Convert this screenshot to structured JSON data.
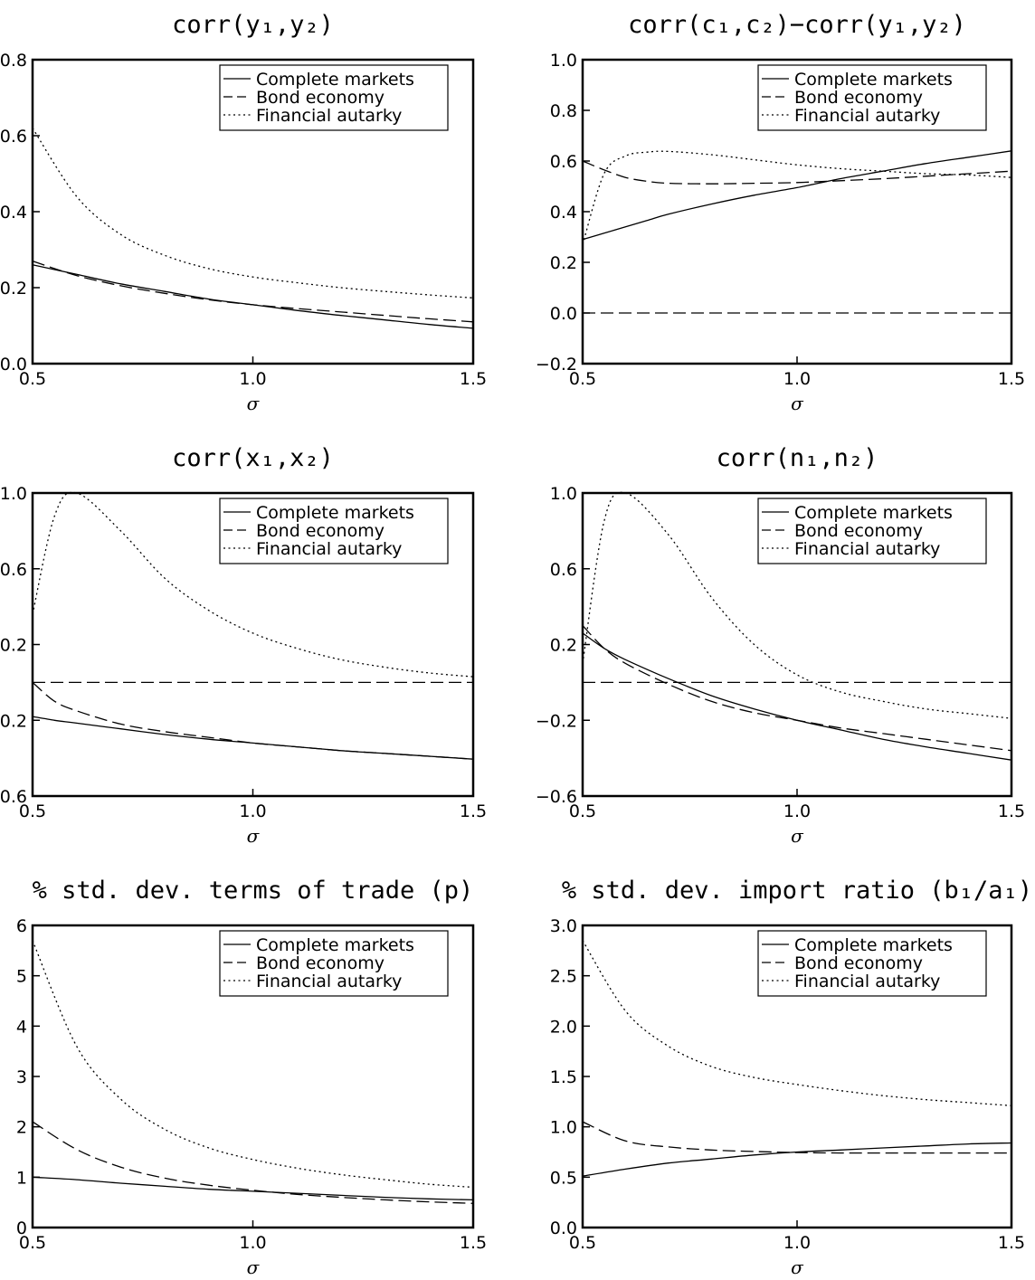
{
  "styles": {
    "Complete markets": "solid",
    "Bond economy": "dashed",
    "Financial autarky": "dotted"
  },
  "chart_data": [
    {
      "type": "line",
      "title": "corr(y₁,y₂)",
      "xlabel": "σ",
      "xlim": [
        0.5,
        1.5
      ],
      "ylim": [
        0.0,
        0.8
      ],
      "xticks": [
        "0.5",
        "1.0",
        "1.5"
      ],
      "yticks": [
        "0.0",
        "0.2",
        "0.4",
        "0.6",
        "0.8"
      ],
      "legend": [
        "Complete markets",
        "Bond economy",
        "Financial autarky"
      ],
      "legend_position": "top-right",
      "x": [
        0.5,
        0.6,
        0.7,
        0.8,
        0.9,
        1.0,
        1.1,
        1.2,
        1.3,
        1.4,
        1.5
      ],
      "series": [
        {
          "name": "Complete markets",
          "values": [
            0.26,
            0.235,
            0.21,
            0.19,
            0.17,
            0.155,
            0.14,
            0.127,
            0.115,
            0.103,
            0.093
          ]
        },
        {
          "name": "Bond economy",
          "values": [
            0.27,
            0.232,
            0.205,
            0.185,
            0.168,
            0.155,
            0.145,
            0.136,
            0.127,
            0.118,
            0.11
          ]
        },
        {
          "name": "Financial autarky",
          "values": [
            0.62,
            0.44,
            0.34,
            0.285,
            0.25,
            0.228,
            0.213,
            0.2,
            0.19,
            0.181,
            0.173
          ]
        }
      ]
    },
    {
      "type": "line",
      "title": "corr(c₁,c₂)−corr(y₁,y₂)",
      "xlabel": "σ",
      "xlim": [
        0.5,
        1.5
      ],
      "ylim": [
        -0.2,
        1.0
      ],
      "xticks": [
        "0.5",
        "1.0",
        "1.5"
      ],
      "yticks": [
        "−0.2",
        "0.0",
        "0.2",
        "0.4",
        "0.6",
        "0.8",
        "1.0"
      ],
      "legend": [
        "Complete markets",
        "Bond economy",
        "Financial autarky"
      ],
      "legend_position": "top-right",
      "reference_line": 0.0,
      "x": [
        0.5,
        0.55,
        0.6,
        0.65,
        0.7,
        0.8,
        0.9,
        1.0,
        1.1,
        1.2,
        1.3,
        1.4,
        1.5
      ],
      "series": [
        {
          "name": "Complete markets",
          "values": [
            0.29,
            0.315,
            0.34,
            0.365,
            0.39,
            0.43,
            0.465,
            0.495,
            0.53,
            0.56,
            0.59,
            0.615,
            0.64
          ]
        },
        {
          "name": "Bond economy",
          "values": [
            0.6,
            0.565,
            0.535,
            0.52,
            0.512,
            0.51,
            0.512,
            0.515,
            0.522,
            0.53,
            0.54,
            0.55,
            0.56
          ]
        },
        {
          "name": "Financial autarky",
          "values": [
            0.27,
            0.55,
            0.62,
            0.635,
            0.638,
            0.625,
            0.605,
            0.585,
            0.57,
            0.56,
            0.55,
            0.545,
            0.535
          ]
        }
      ]
    },
    {
      "type": "line",
      "title": "corr(x₁,x₂)",
      "xlabel": "σ",
      "xlim": [
        0.5,
        1.5
      ],
      "ylim": [
        -0.6,
        1.0
      ],
      "xticks": [
        "0.5",
        "1.0",
        "1.5"
      ],
      "yticks": [
        "−0.6",
        "−0.2",
        "0.2",
        "0.6",
        "1.0"
      ],
      "legend": [
        "Complete markets",
        "Bond economy",
        "Financial autarky"
      ],
      "legend_position": "top-right",
      "reference_line": 0.0,
      "x": [
        0.5,
        0.55,
        0.6,
        0.7,
        0.8,
        0.9,
        1.0,
        1.1,
        1.2,
        1.3,
        1.4,
        1.5
      ],
      "series": [
        {
          "name": "Complete markets",
          "values": [
            -0.18,
            -0.2,
            -0.215,
            -0.245,
            -0.275,
            -0.3,
            -0.32,
            -0.34,
            -0.36,
            -0.375,
            -0.39,
            -0.405
          ]
        },
        {
          "name": "Bond economy",
          "values": [
            0.0,
            -0.1,
            -0.15,
            -0.22,
            -0.26,
            -0.29,
            -0.32,
            -0.34,
            -0.36,
            -0.375,
            -0.39,
            -0.405
          ]
        },
        {
          "name": "Financial autarky",
          "values": [
            0.36,
            0.88,
            1.0,
            0.8,
            0.55,
            0.38,
            0.26,
            0.18,
            0.12,
            0.08,
            0.05,
            0.03
          ]
        }
      ]
    },
    {
      "type": "line",
      "title": "corr(n₁,n₂)",
      "xlabel": "σ",
      "xlim": [
        0.5,
        1.5
      ],
      "ylim": [
        -0.6,
        1.0
      ],
      "xticks": [
        "0.5",
        "1.0",
        "1.5"
      ],
      "yticks": [
        "−0.6",
        "−0.2",
        "0.2",
        "0.6",
        "1.0"
      ],
      "legend": [
        "Complete markets",
        "Bond economy",
        "Financial autarky"
      ],
      "legend_position": "top-right",
      "reference_line": 0.0,
      "x": [
        0.5,
        0.55,
        0.6,
        0.7,
        0.8,
        0.9,
        1.0,
        1.1,
        1.2,
        1.3,
        1.4,
        1.5
      ],
      "series": [
        {
          "name": "Complete markets",
          "values": [
            0.26,
            0.18,
            0.12,
            0.02,
            -0.07,
            -0.14,
            -0.2,
            -0.25,
            -0.3,
            -0.34,
            -0.375,
            -0.41
          ]
        },
        {
          "name": "Bond economy",
          "values": [
            0.3,
            0.18,
            0.1,
            -0.01,
            -0.1,
            -0.16,
            -0.2,
            -0.24,
            -0.27,
            -0.3,
            -0.33,
            -0.36
          ]
        },
        {
          "name": "Financial autarky",
          "values": [
            0.1,
            0.85,
            1.0,
            0.78,
            0.45,
            0.2,
            0.04,
            -0.05,
            -0.1,
            -0.14,
            -0.165,
            -0.19
          ]
        }
      ]
    },
    {
      "type": "line",
      "title": "% std. dev. terms of trade (p)",
      "xlabel": "σ",
      "xlim": [
        0.5,
        1.5
      ],
      "ylim": [
        0,
        6
      ],
      "xticks": [
        "0.5",
        "1.0",
        "1.5"
      ],
      "yticks": [
        "0",
        "1",
        "2",
        "3",
        "4",
        "5",
        "6"
      ],
      "legend": [
        "Complete markets",
        "Bond economy",
        "Financial autarky"
      ],
      "legend_position": "top-right",
      "x": [
        0.5,
        0.6,
        0.7,
        0.8,
        0.9,
        1.0,
        1.1,
        1.2,
        1.3,
        1.4,
        1.5
      ],
      "series": [
        {
          "name": "Complete markets",
          "values": [
            1.0,
            0.95,
            0.88,
            0.82,
            0.76,
            0.72,
            0.68,
            0.64,
            0.6,
            0.57,
            0.55
          ]
        },
        {
          "name": "Bond economy",
          "values": [
            2.1,
            1.55,
            1.2,
            0.98,
            0.84,
            0.74,
            0.66,
            0.6,
            0.55,
            0.51,
            0.48
          ]
        },
        {
          "name": "Financial autarky",
          "values": [
            5.7,
            3.6,
            2.55,
            1.95,
            1.58,
            1.35,
            1.18,
            1.05,
            0.95,
            0.86,
            0.8
          ]
        }
      ]
    },
    {
      "type": "line",
      "title": "% std. dev. import ratio (b₁/a₁)",
      "xlabel": "σ",
      "xlim": [
        0.5,
        1.5
      ],
      "ylim": [
        0.0,
        3.0
      ],
      "xticks": [
        "0.5",
        "1.0",
        "1.5"
      ],
      "yticks": [
        "0.0",
        "0.5",
        "1.0",
        "1.5",
        "2.0",
        "2.5",
        "3.0"
      ],
      "legend": [
        "Complete markets",
        "Bond economy",
        "Financial autarky"
      ],
      "legend_position": "top-right",
      "x": [
        0.5,
        0.6,
        0.7,
        0.8,
        0.9,
        1.0,
        1.1,
        1.2,
        1.3,
        1.4,
        1.5
      ],
      "series": [
        {
          "name": "Complete markets",
          "values": [
            0.51,
            0.58,
            0.64,
            0.68,
            0.72,
            0.75,
            0.77,
            0.79,
            0.81,
            0.83,
            0.84
          ]
        },
        {
          "name": "Bond economy",
          "values": [
            1.05,
            0.86,
            0.8,
            0.77,
            0.755,
            0.745,
            0.74,
            0.74,
            0.74,
            0.74,
            0.74
          ]
        },
        {
          "name": "Financial autarky",
          "values": [
            2.85,
            2.15,
            1.8,
            1.6,
            1.49,
            1.42,
            1.36,
            1.31,
            1.27,
            1.24,
            1.21
          ]
        }
      ]
    }
  ]
}
